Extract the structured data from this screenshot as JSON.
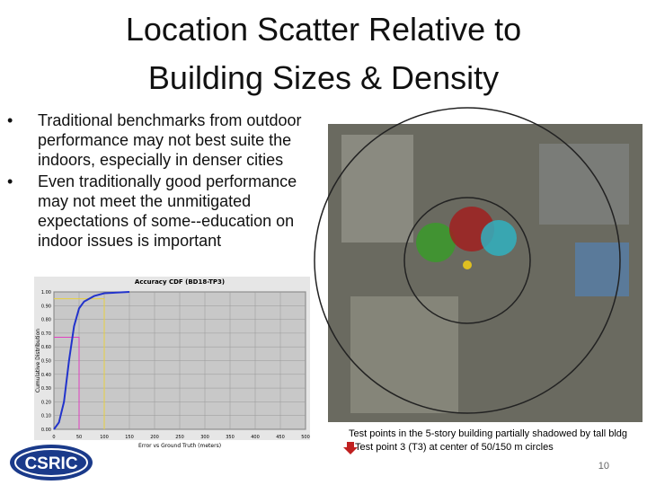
{
  "title": [
    "Location Scatter Relative to",
    "Building Sizes & Density"
  ],
  "bullets": [
    "Traditional benchmarks from outdoor performance may not best suite the indoors, especially in denser cities",
    "Even traditionally good performance may not meet the unmitigated expectations of some--education on indoor issues is important"
  ],
  "chart_data": {
    "type": "line",
    "title": "Accuracy CDF (BD18-TP3)",
    "x_label": "Error vs Ground Truth (meters)",
    "y_label": "Cumulative Distribution",
    "x": [
      0,
      10,
      20,
      30,
      40,
      50,
      60,
      80,
      100,
      150
    ],
    "values": [
      0,
      0.05,
      0.2,
      0.5,
      0.75,
      0.88,
      0.93,
      0.97,
      0.99,
      1.0
    ],
    "color": "#2233cc",
    "xlim": [
      0,
      500
    ],
    "xticks": [
      0,
      50,
      100,
      150,
      200,
      250,
      300,
      350,
      400,
      450,
      500
    ],
    "ylim": [
      0,
      1
    ],
    "yticks": [
      {
        "value": 0,
        "label": "0.00"
      },
      {
        "value": 0.1,
        "label": "0.10"
      },
      {
        "value": 0.2,
        "label": "0.20"
      },
      {
        "value": 0.3,
        "label": "0.30"
      },
      {
        "value": 0.4,
        "label": "0.40"
      },
      {
        "value": 0.5,
        "label": "0.50"
      },
      {
        "value": 0.6,
        "label": "0.60"
      },
      {
        "value": 0.7,
        "label": "0.70"
      },
      {
        "value": 0.8,
        "label": "0.80"
      },
      {
        "value": 0.9,
        "label": "0.90"
      },
      {
        "value": 1,
        "label": "1.00"
      }
    ],
    "grid": true,
    "reference_lines": [
      {
        "x": 50,
        "y": 0.67,
        "color": "#e040c0"
      },
      {
        "x": 100,
        "y": 0.95,
        "color": "#e8d040"
      }
    ]
  },
  "caption": [
    "Test points in the 5-story building partially shadowed by tall bldg",
    "Test point 3 (T3) at center of 50/150 m circles"
  ],
  "logo": "CSRIC",
  "page_number": "10"
}
